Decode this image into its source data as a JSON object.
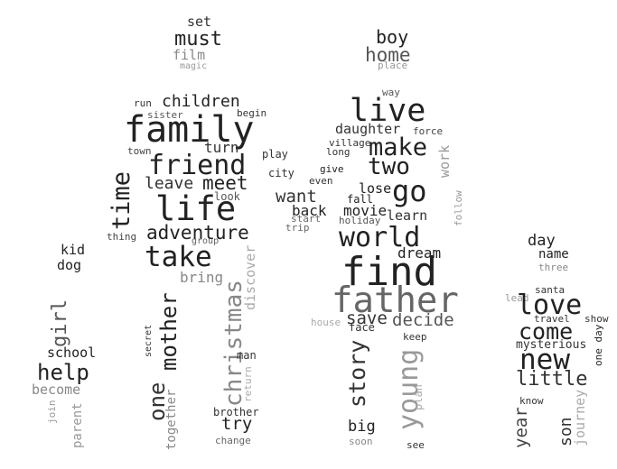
{
  "words": [
    {
      "t": "set",
      "c": "#333333"
    },
    {
      "t": "must",
      "c": "#222222"
    },
    {
      "t": "film",
      "c": "#888888"
    },
    {
      "t": "magic",
      "c": "#999999"
    },
    {
      "t": "boy",
      "c": "#222222"
    },
    {
      "t": "home",
      "c": "#555555"
    },
    {
      "t": "place",
      "c": "#999999"
    },
    {
      "t": "run",
      "c": "#333333"
    },
    {
      "t": "children",
      "c": "#222222"
    },
    {
      "t": "sister",
      "c": "#555555"
    },
    {
      "t": "begin",
      "c": "#333333"
    },
    {
      "t": "family",
      "c": "#222222"
    },
    {
      "t": "town",
      "c": "#444444"
    },
    {
      "t": "turn",
      "c": "#333333"
    },
    {
      "t": "friend",
      "c": "#222222"
    },
    {
      "t": "time",
      "c": "#222222"
    },
    {
      "t": "leave",
      "c": "#333333"
    },
    {
      "t": "meet",
      "c": "#222222"
    },
    {
      "t": "look",
      "c": "#555555"
    },
    {
      "t": "life",
      "c": "#222222"
    },
    {
      "t": "adventure",
      "c": "#222222"
    },
    {
      "t": "thing",
      "c": "#444444"
    },
    {
      "t": "group",
      "c": "#666666"
    },
    {
      "t": "take",
      "c": "#222222"
    },
    {
      "t": "bring",
      "c": "#888888"
    },
    {
      "t": "christmas",
      "c": "#888888"
    },
    {
      "t": "discover",
      "c": "#aaaaaa"
    },
    {
      "t": "kid",
      "c": "#222222"
    },
    {
      "t": "dog",
      "c": "#222222"
    },
    {
      "t": "girl",
      "c": "#555555"
    },
    {
      "t": "school",
      "c": "#222222"
    },
    {
      "t": "help",
      "c": "#222222"
    },
    {
      "t": "become",
      "c": "#888888"
    },
    {
      "t": "join",
      "c": "#999999"
    },
    {
      "t": "parent",
      "c": "#999999"
    },
    {
      "t": "mother",
      "c": "#222222"
    },
    {
      "t": "one",
      "c": "#333333"
    },
    {
      "t": "secret",
      "c": "#333333"
    },
    {
      "t": "together",
      "c": "#888888"
    },
    {
      "t": "man",
      "c": "#333333"
    },
    {
      "t": "return",
      "c": "#aaaaaa"
    },
    {
      "t": "brother",
      "c": "#333333"
    },
    {
      "t": "try",
      "c": "#222222"
    },
    {
      "t": "change",
      "c": "#666666"
    },
    {
      "t": "play",
      "c": "#333333"
    },
    {
      "t": "city",
      "c": "#333333"
    },
    {
      "t": "want",
      "c": "#333333"
    },
    {
      "t": "back",
      "c": "#222222"
    },
    {
      "t": "start",
      "c": "#666666"
    },
    {
      "t": "trip",
      "c": "#666666"
    },
    {
      "t": "way",
      "c": "#555555"
    },
    {
      "t": "live",
      "c": "#222222"
    },
    {
      "t": "daughter",
      "c": "#333333"
    },
    {
      "t": "force",
      "c": "#444444"
    },
    {
      "t": "village",
      "c": "#333333"
    },
    {
      "t": "long",
      "c": "#333333"
    },
    {
      "t": "make",
      "c": "#222222"
    },
    {
      "t": "two",
      "c": "#222222"
    },
    {
      "t": "give",
      "c": "#222222"
    },
    {
      "t": "even",
      "c": "#333333"
    },
    {
      "t": "work",
      "c": "#999999"
    },
    {
      "t": "lose",
      "c": "#222222"
    },
    {
      "t": "go",
      "c": "#222222"
    },
    {
      "t": "fall",
      "c": "#222222"
    },
    {
      "t": "movie",
      "c": "#222222"
    },
    {
      "t": "learn",
      "c": "#333333"
    },
    {
      "t": "holiday",
      "c": "#555555"
    },
    {
      "t": "follow",
      "c": "#999999"
    },
    {
      "t": "world",
      "c": "#222222"
    },
    {
      "t": "dream",
      "c": "#222222"
    },
    {
      "t": "find",
      "c": "#222222"
    },
    {
      "t": "father",
      "c": "#666666"
    },
    {
      "t": "save",
      "c": "#333333"
    },
    {
      "t": "decide",
      "c": "#555555"
    },
    {
      "t": "house",
      "c": "#aaaaaa"
    },
    {
      "t": "face",
      "c": "#333333"
    },
    {
      "t": "keep",
      "c": "#333333"
    },
    {
      "t": "story",
      "c": "#333333"
    },
    {
      "t": "young",
      "c": "#999999"
    },
    {
      "t": "plan",
      "c": "#aaaaaa"
    },
    {
      "t": "big",
      "c": "#222222"
    },
    {
      "t": "soon",
      "c": "#888888"
    },
    {
      "t": "see",
      "c": "#333333"
    },
    {
      "t": "day",
      "c": "#222222"
    },
    {
      "t": "name",
      "c": "#222222"
    },
    {
      "t": "three",
      "c": "#888888"
    },
    {
      "t": "santa",
      "c": "#333333"
    },
    {
      "t": "lead",
      "c": "#999999"
    },
    {
      "t": "love",
      "c": "#222222"
    },
    {
      "t": "travel",
      "c": "#333333"
    },
    {
      "t": "show",
      "c": "#333333"
    },
    {
      "t": "come",
      "c": "#222222"
    },
    {
      "t": "one day",
      "c": "#222222"
    },
    {
      "t": "mysterious",
      "c": "#333333"
    },
    {
      "t": "new",
      "c": "#222222"
    },
    {
      "t": "little",
      "c": "#333333"
    },
    {
      "t": "know",
      "c": "#333333"
    },
    {
      "t": "year",
      "c": "#444444"
    },
    {
      "t": "son",
      "c": "#333333"
    },
    {
      "t": "journey",
      "c": "#aaaaaa"
    }
  ]
}
